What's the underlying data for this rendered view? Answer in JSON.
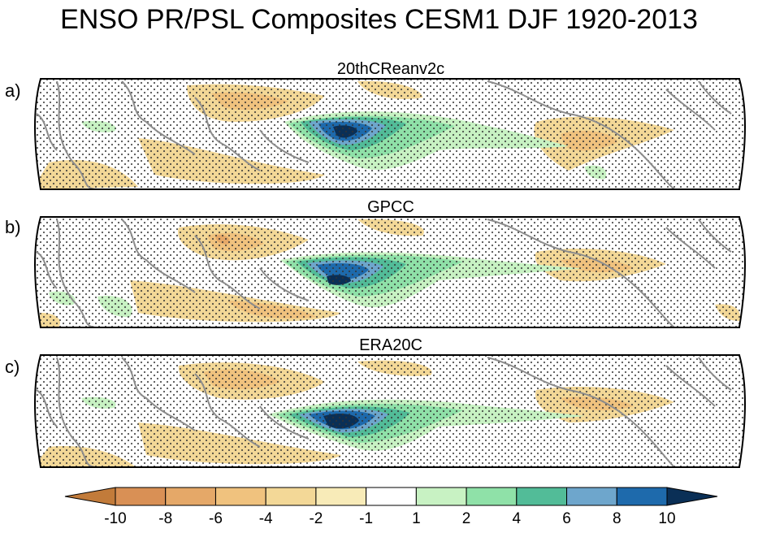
{
  "title": "ENSO PR/PSL Composites CESM1 DJF 1920-2013",
  "panels": [
    {
      "letter": "a)",
      "label": "20thCReanv2c"
    },
    {
      "letter": "b)",
      "label": "GPCC"
    },
    {
      "letter": "c)",
      "label": "ERA20C"
    }
  ],
  "colorbar": {
    "ticks": [
      "-10",
      "-8",
      "-6",
      "-4",
      "-2",
      "-1",
      "1",
      "2",
      "4",
      "6",
      "8",
      "10"
    ],
    "colors": [
      "#c27b3a",
      "#d99055",
      "#e5a868",
      "#f0c27e",
      "#f3d897",
      "#f8ebb8",
      "#ffffff",
      "#c8f2c3",
      "#8fe1a8",
      "#52bc98",
      "#6ea6cc",
      "#1e6aac",
      "#0a2f56"
    ]
  }
}
